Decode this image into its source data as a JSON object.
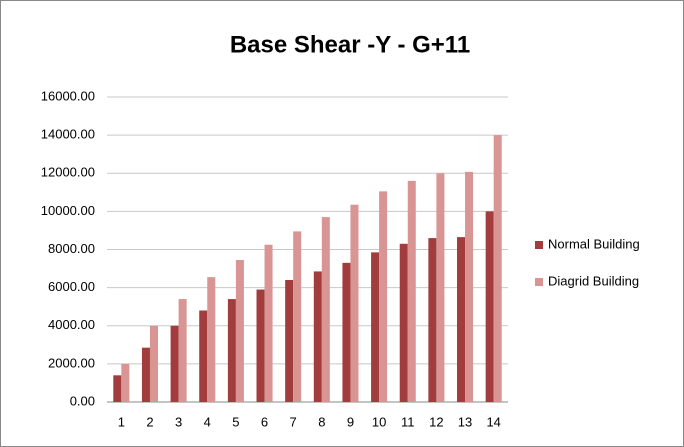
{
  "chart_data": {
    "type": "bar",
    "title": "Base Shear -Y - G+11",
    "categories": [
      "1",
      "2",
      "3",
      "4",
      "5",
      "6",
      "7",
      "8",
      "9",
      "10",
      "11",
      "12",
      "13",
      "14"
    ],
    "series": [
      {
        "name": "Normal Building",
        "color": "#a33c3c",
        "values": [
          1400,
          2850,
          4000,
          4800,
          5400,
          5900,
          6400,
          6850,
          7300,
          7850,
          8300,
          8600,
          8650,
          10000
        ]
      },
      {
        "name": "Diagrid Building",
        "color": "#d99594",
        "values": [
          2000,
          4000,
          5400,
          6550,
          7450,
          8250,
          8950,
          9700,
          10350,
          11050,
          11600,
          12000,
          12070,
          14000
        ]
      }
    ],
    "ylim": [
      0,
      16000
    ],
    "yticks": [
      {
        "value": 0,
        "label": "0.00"
      },
      {
        "value": 2000,
        "label": "2000.00"
      },
      {
        "value": 4000,
        "label": "4000.00"
      },
      {
        "value": 6000,
        "label": "6000.00"
      },
      {
        "value": 8000,
        "label": "8000.00"
      },
      {
        "value": 10000,
        "label": "10000.00"
      },
      {
        "value": 12000,
        "label": "12000.00"
      },
      {
        "value": 14000,
        "label": "14000.00"
      },
      {
        "value": 16000,
        "label": "16000.00"
      }
    ],
    "grid": true,
    "legend": "right"
  }
}
